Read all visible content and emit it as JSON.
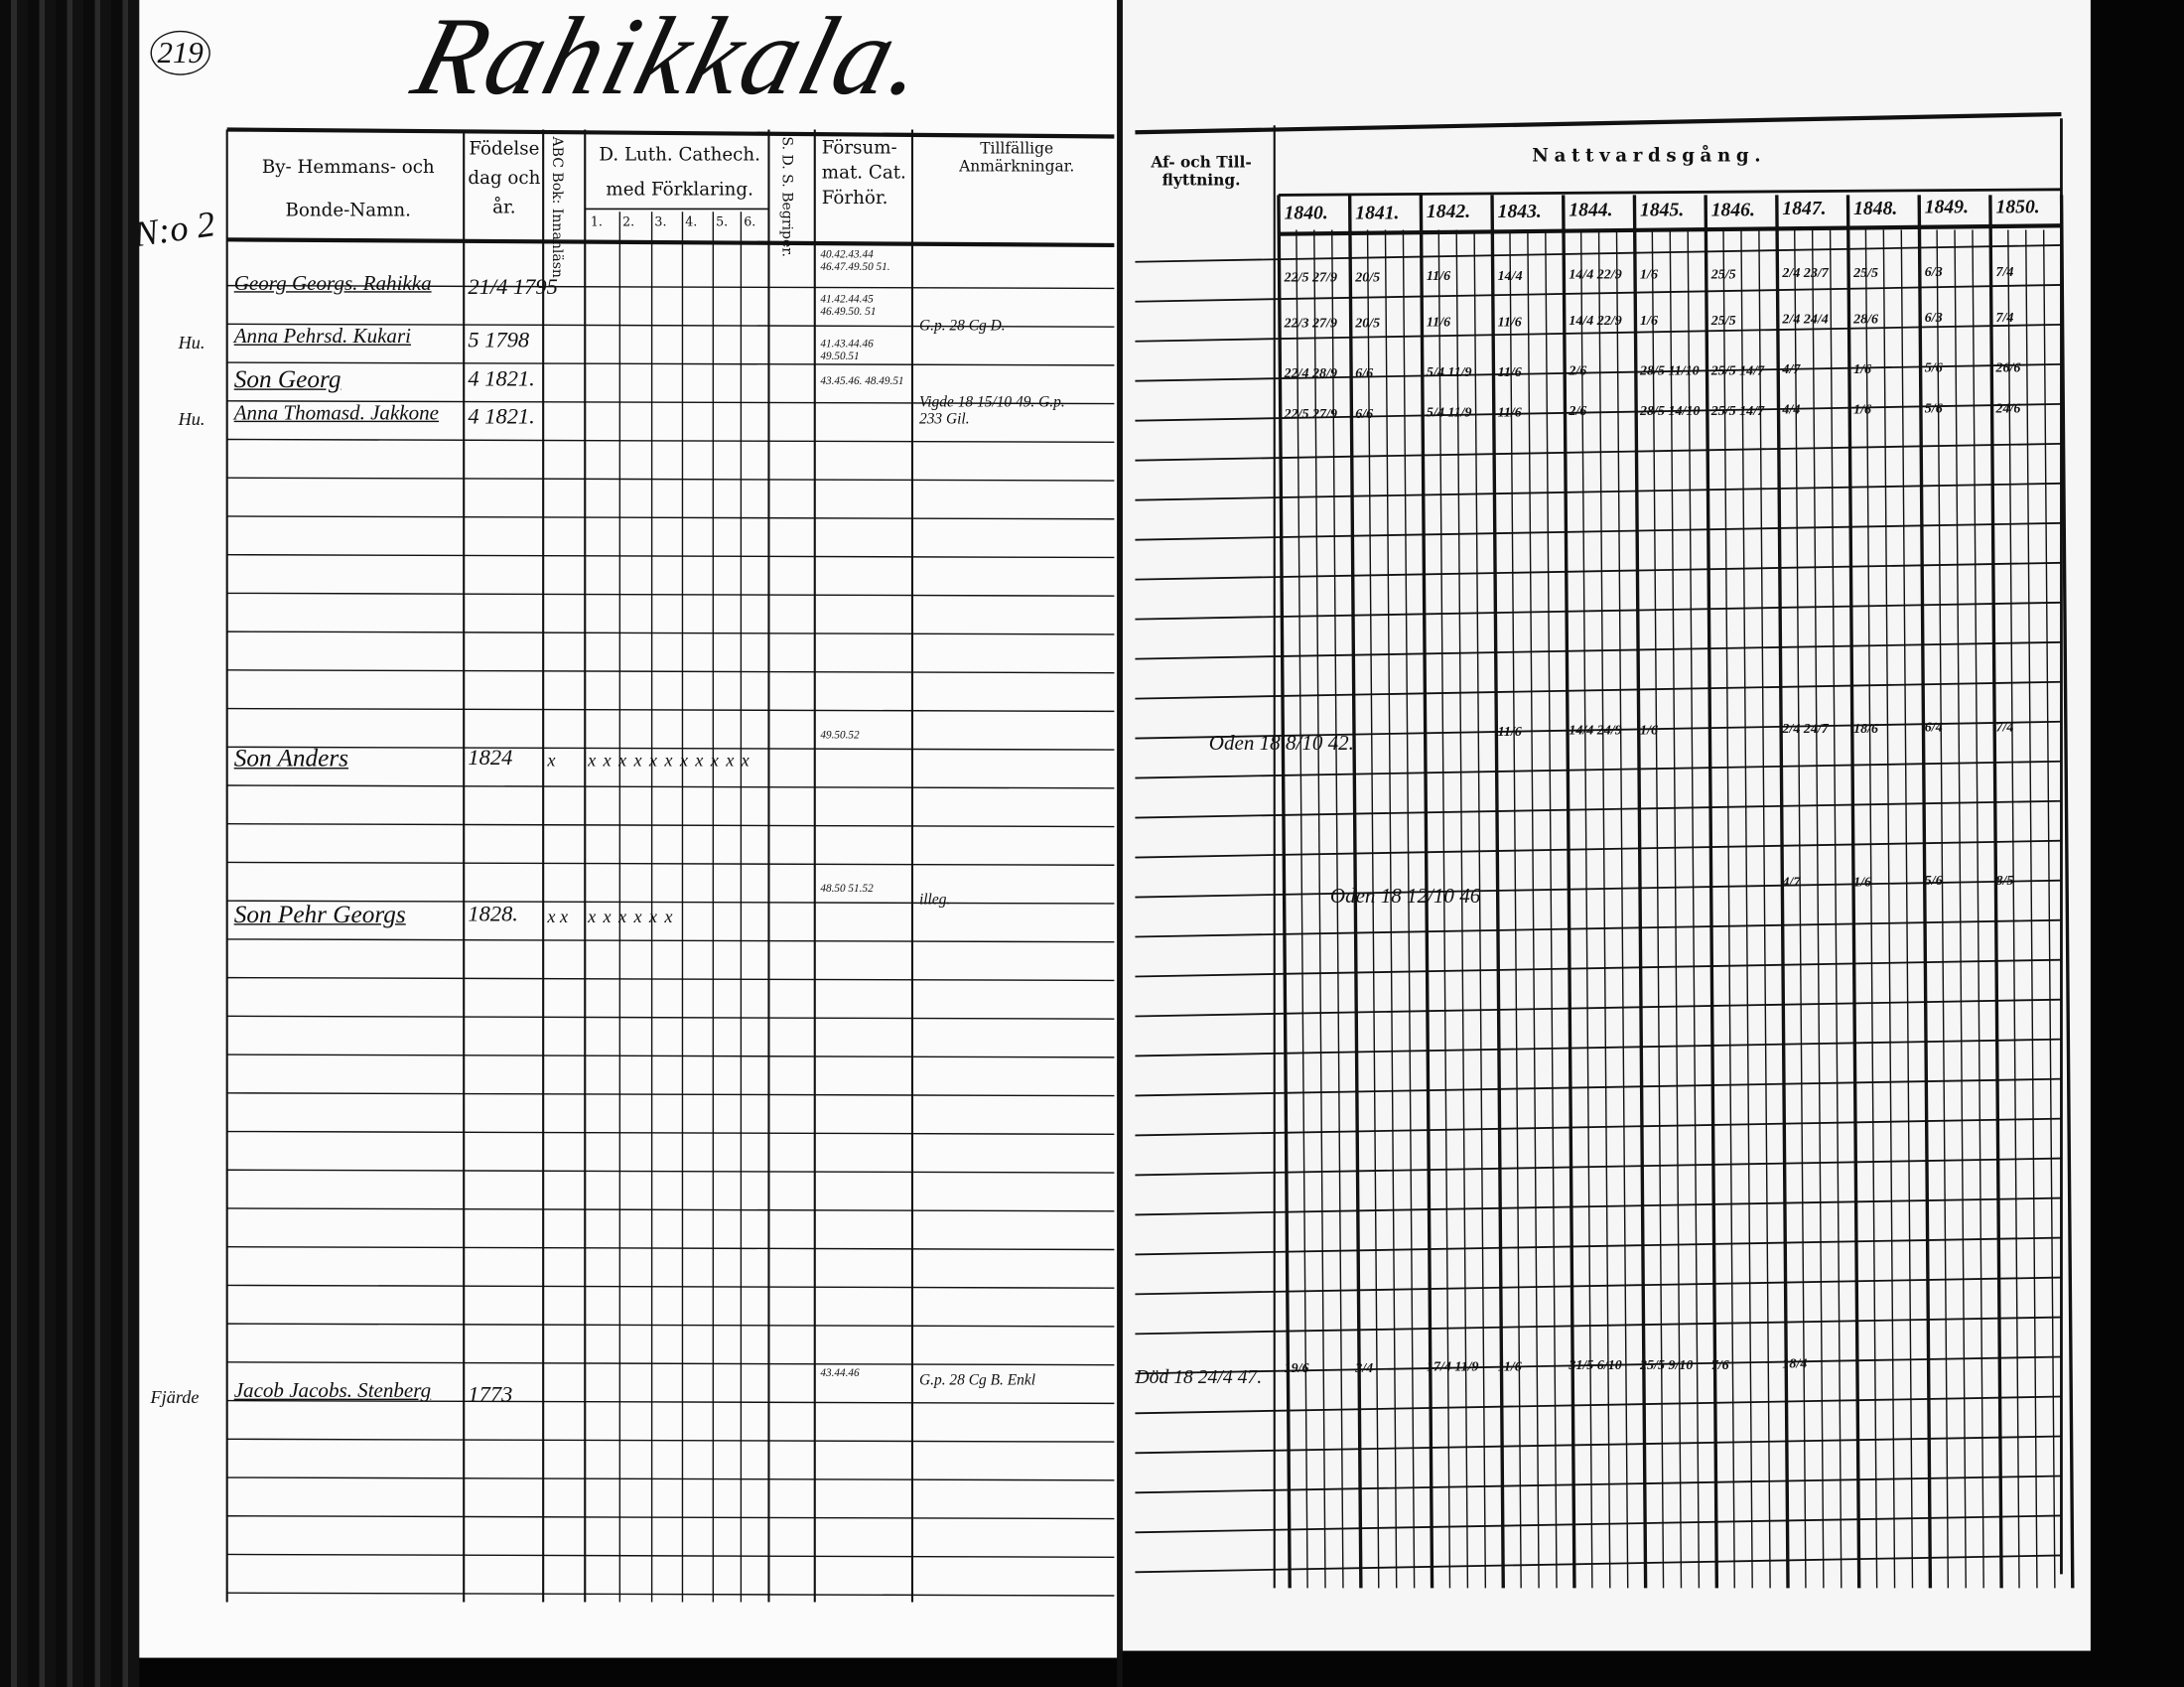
{
  "page_number": "219",
  "village_title": "Rahikkala.",
  "household_number": "N:o 2",
  "left_headers": {
    "name": "By- Hemmans- och Bonde-Namn.",
    "birth": "Födelse dag och år.",
    "abc": "ABC Bok: Innanläsn.",
    "catechism": "D. Luth. Cathech. med Förklaring.",
    "catechism_cols": [
      "1.",
      "2.",
      "3.",
      "4.",
      "5.",
      "6."
    ],
    "sds": "S. D. S. Begriper.",
    "missed": "Försum-mat. Cat. Förhör.",
    "notes": "Tillfällige Anmärkningar."
  },
  "right_headers": {
    "moves": "Af- och Till-flyttning.",
    "communion": "Nattvardsgång.",
    "years": [
      "1840.",
      "1841.",
      "1842.",
      "1843.",
      "1844.",
      "1845.",
      "1846.",
      "1847.",
      "1848.",
      "1849.",
      "1850."
    ]
  },
  "persons": [
    {
      "role": "",
      "name": "Georg Georgs. Rahikka",
      "birth": "21/4 1795",
      "abc": "",
      "catechism": "",
      "missed": "40.42.43.44 46.47.49.50 51.",
      "notes": "",
      "moves": "",
      "communion": [
        "22/5 27/9",
        "20/5",
        "11/6",
        "14/4",
        "14/4 22/9",
        "1/6",
        "25/5",
        "2/4 23/7",
        "25/5",
        "6/3",
        "7/4"
      ]
    },
    {
      "role": "Hu.",
      "name": "Anna Pehrsd. Kukari",
      "birth": "5 1798",
      "abc": "",
      "catechism": "",
      "missed": "41.42.44.45 46.49.50. 51",
      "notes": "G.p. 28 Cg D.",
      "moves": "",
      "communion": [
        "22/3 27/9",
        "20/5",
        "11/6",
        "11/6",
        "14/4 22/9",
        "1/6",
        "25/5",
        "2/4 24/4",
        "28/6",
        "6/3",
        "7/4"
      ]
    },
    {
      "role": "",
      "name": "Son Georg",
      "birth": "4 1821.",
      "abc": "",
      "catechism": "",
      "missed": "41.43.44.46 49.50.51",
      "notes": "",
      "moves": "",
      "communion": [
        "22/4 28/9",
        "6/6",
        "5/4 11/9",
        "11/6",
        "2/6",
        "28/5 11/10",
        "25/5 14/7",
        "4/7",
        "1/6",
        "5/6",
        "26/6"
      ]
    },
    {
      "role": "Hu.",
      "name": "Anna Thomasd. Jakkone",
      "birth": "4 1821.",
      "abc": "",
      "catechism": "",
      "missed": "43.45.46. 48.49.51",
      "notes": "Vigde 18 15/10 49. G.p. 233 Gil.",
      "moves": "",
      "communion": [
        "22/5 27/9",
        "6/6",
        "5/4 11/9",
        "11/6",
        "2/6",
        "28/5 14/10",
        "25/5 14/7",
        "4/4",
        "1/6",
        "5/6",
        "24/6"
      ]
    },
    {
      "role": "",
      "name": "Son Anders",
      "birth": "1824",
      "abc": "x",
      "catechism": "x x x x x x x x x x x",
      "missed": "49.50.52",
      "notes": "",
      "moves": "Oden 18 8/10 42.",
      "communion": [
        "",
        "",
        "",
        "11/6",
        "14/4 24/9",
        "1/6",
        "",
        "2/4 24/7",
        "18/6",
        "6/4",
        "7/4"
      ]
    },
    {
      "role": "",
      "name": "Son Pehr Georgs",
      "birth": "1828.",
      "abc": "x x",
      "catechism": "x x x x x x",
      "missed": "48.50 51.52",
      "notes": "illeg.",
      "moves": "Oden 18 12/10 46",
      "communion": [
        "",
        "",
        "",
        "",
        "",
        "",
        "",
        "4/7",
        "1/6",
        "5/6",
        "8/5"
      ]
    },
    {
      "role": "Fjärde",
      "name": "Jacob Jacobs. Stenberg",
      "birth": "1773",
      "abc": "",
      "catechism": "",
      "missed": "43.44.46",
      "notes": "G.p. 28 Cg B. Enkl",
      "moves": "Död 18 24/4 47.",
      "communion": [
        "19/6",
        "3/4",
        "17/4 11/9",
        "11/6",
        "31/5 6/10",
        "25/5 9/10",
        "7/6",
        "18/4",
        "",
        "",
        ""
      ]
    }
  ]
}
